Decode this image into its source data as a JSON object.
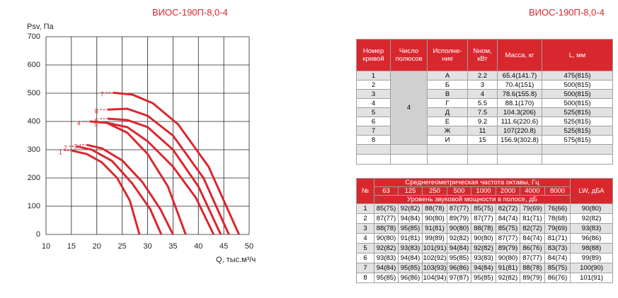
{
  "chart_data": {
    "type": "line",
    "title": "ВИОС-190П-8,0-4",
    "y_label": "Psv, Па",
    "x_label": "Q, тыс.м³/ч",
    "xlim": [
      10,
      50
    ],
    "ylim": [
      0,
      700
    ],
    "xticks": [
      10,
      15,
      20,
      25,
      30,
      35,
      40,
      45,
      50
    ],
    "yticks": [
      0,
      100,
      200,
      300,
      400,
      500,
      600,
      700
    ],
    "grid": true,
    "series": [
      {
        "name": "1",
        "color": "#d9272e",
        "x": [
          15,
          18,
          21,
          24,
          26.5,
          28.4
        ],
        "values": [
          297,
          285,
          255,
          200,
          120,
          0
        ]
      },
      {
        "name": "2",
        "color": "#d9272e",
        "x": [
          16,
          19,
          23,
          27,
          30.5,
          32.7
        ],
        "values": [
          312,
          300,
          260,
          180,
          90,
          0
        ]
      },
      {
        "name": "3",
        "color": "#d9272e",
        "x": [
          18,
          21,
          25,
          29,
          32.5,
          35
        ],
        "values": [
          317,
          305,
          262,
          185,
          90,
          0
        ]
      },
      {
        "name": "4",
        "color": "#d9272e",
        "x": [
          18.6,
          22,
          26,
          30,
          34,
          37.5
        ],
        "values": [
          400,
          395,
          360,
          285,
          170,
          0
        ]
      },
      {
        "name": "5",
        "color": "#d9272e",
        "x": [
          22,
          26,
          30,
          35,
          39.5,
          43
        ],
        "values": [
          395,
          380,
          330,
          240,
          130,
          0
        ]
      },
      {
        "name": "6",
        "color": "#d9272e",
        "x": [
          22.1,
          26,
          30,
          35,
          40,
          44.4
        ],
        "values": [
          410,
          405,
          380,
          300,
          170,
          0
        ]
      },
      {
        "name": "7",
        "color": "#d9272e",
        "x": [
          23.2,
          27,
          31,
          36,
          42,
          48
        ],
        "values": [
          502,
          495,
          465,
          390,
          240,
          0
        ]
      },
      {
        "name": "8",
        "color": "#d9272e",
        "x": [
          22.1,
          26,
          30,
          35,
          41,
          46
        ],
        "values": [
          442,
          445,
          420,
          350,
          200,
          0
        ]
      }
    ]
  },
  "table1": {
    "title": "ВИОС-190П-8,0-4",
    "header": [
      "Номер кривой",
      "Число полюсов",
      "Исполне-ние",
      "Nном, кВт",
      "Масса, кг",
      "L, мм"
    ],
    "poles": 4,
    "rows": [
      [
        1,
        "А",
        2.2,
        "65.4(141.7)",
        "475(815)"
      ],
      [
        2,
        "Б",
        3,
        "70.4(151)",
        "500(815)"
      ],
      [
        3,
        "В",
        4,
        "78.6(155.8)",
        "500(815)"
      ],
      [
        4,
        "Г",
        5.5,
        "88.1(170)",
        "500(815)"
      ],
      [
        5,
        "Д",
        7.5,
        "104.3(206)",
        "525(815)"
      ],
      [
        6,
        "Е",
        9.2,
        "111.6(220.6)",
        "525(815)"
      ],
      [
        7,
        "Ж",
        11,
        "107(220.8)",
        "525(815)"
      ],
      [
        8,
        "И",
        15,
        "156.9(302.8)",
        "575(815)"
      ]
    ]
  },
  "table2": {
    "no": "№",
    "freq_title": "Среднегеометрическая частота октавы, Гц",
    "freqs": [
      63,
      125,
      250,
      500,
      1000,
      2000,
      4000,
      8000
    ],
    "level_title": "Уровень звуковой мощности в полосе, дБ",
    "lw": "LW, дБА",
    "rows": [
      [
        1,
        "85(75)",
        "92(82)",
        "88(78)",
        "87(77)",
        "85(75)",
        "82(72)",
        "79(69)",
        "76(66)",
        "90(80)"
      ],
      [
        2,
        "87(77)",
        "94(84)",
        "90(80)",
        "89(79)",
        "87(77)",
        "84(74)",
        "81(71)",
        "78(68)",
        "92(82)"
      ],
      [
        3,
        "88(78)",
        "95(85)",
        "91(81)",
        "90(80)",
        "88(78)",
        "85(75)",
        "82(72)",
        "79(69)",
        "93(83)"
      ],
      [
        4,
        "90(80)",
        "91(81)",
        "99(89)",
        "92(82)",
        "90(80)",
        "87(77)",
        "84(74)",
        "81(71)",
        "96(86)"
      ],
      [
        5,
        "92(82)",
        "93(83)",
        "101(91)",
        "94(84)",
        "92(82)",
        "89(79)",
        "86(76)",
        "83(73)",
        "98(88)"
      ],
      [
        6,
        "93(83)",
        "94(84)",
        "102(92)",
        "95(85)",
        "93(83)",
        "90(80)",
        "87(77)",
        "84(74)",
        "99(89)"
      ],
      [
        7,
        "94(84)",
        "95(85)",
        "103(93)",
        "96(86)",
        "94(84)",
        "91(81)",
        "88(78)",
        "85(75)",
        "100(90)"
      ],
      [
        8,
        "95(85)",
        "96(86)",
        "104(94)",
        "97(87)",
        "95(85)",
        "92(82)",
        "89(79)",
        "86(76)",
        "101(91)"
      ]
    ]
  }
}
